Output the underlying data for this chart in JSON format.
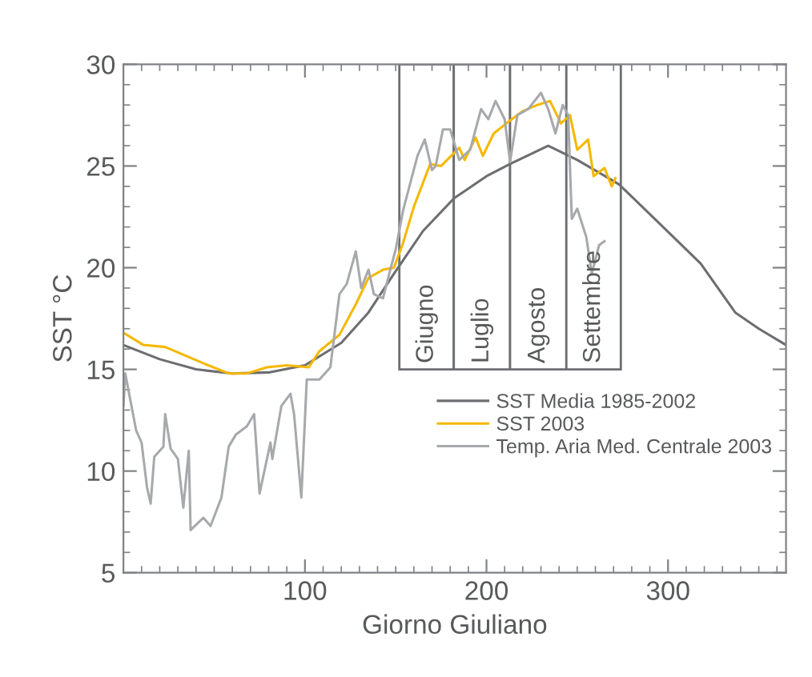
{
  "chart_data": {
    "type": "line",
    "xlabel": "Giorno Giuliano",
    "ylabel": "SST °C",
    "xlim": [
      0,
      365
    ],
    "xticks": [
      100,
      200,
      300
    ],
    "ylim": [
      5,
      30
    ],
    "yticks": [
      5,
      10,
      15,
      20,
      25,
      30
    ],
    "grid": false,
    "legend": "center right",
    "marker": "none",
    "line_style": "solid",
    "series": [
      {
        "name": "SST Media 1985-2002",
        "color": "#6d6e71",
        "x": [
          0,
          20,
          40,
          60,
          80,
          100,
          120,
          135,
          149,
          165,
          182,
          200,
          213,
          234,
          250,
          273,
          295,
          318,
          337,
          350,
          365
        ],
        "values": [
          16.2,
          15.5,
          15.0,
          14.8,
          14.85,
          15.2,
          16.3,
          17.8,
          19.7,
          21.8,
          23.4,
          24.5,
          25.1,
          26.0,
          25.3,
          24.1,
          22.2,
          20.2,
          17.8,
          17.0,
          16.2
        ]
      },
      {
        "name": "SST 2003",
        "color": "#f5b800",
        "x": [
          0,
          11,
          23,
          44,
          58,
          68,
          79,
          90,
          102,
          108,
          119,
          128,
          135,
          143,
          149,
          154,
          160,
          169,
          175,
          185,
          188,
          194,
          198,
          204,
          211,
          220,
          228,
          235,
          241,
          246,
          250,
          256,
          259,
          265,
          269,
          271
        ],
        "values": [
          16.8,
          16.2,
          16.1,
          15.3,
          14.8,
          14.8,
          15.1,
          15.2,
          15.1,
          15.9,
          16.7,
          18.2,
          19.5,
          19.9,
          20.0,
          21.2,
          23.0,
          25.1,
          25.0,
          25.9,
          25.3,
          26.4,
          25.5,
          26.6,
          27.1,
          27.7,
          28.0,
          28.2,
          27.1,
          27.5,
          25.8,
          26.3,
          24.5,
          24.9,
          24.0,
          24.4
        ]
      },
      {
        "name": "Temp. Aria Med. Centrale 2003",
        "color": "#a7a9ac",
        "x": [
          0,
          1,
          7,
          10,
          13,
          15,
          17,
          22,
          23,
          26,
          30,
          33,
          36,
          37,
          44,
          48,
          54,
          58,
          62,
          68,
          72,
          75,
          81,
          82,
          87,
          92,
          94,
          98,
          101,
          108,
          114,
          119,
          123,
          128,
          131,
          135,
          138,
          143,
          147,
          150,
          154,
          162,
          166,
          170,
          172,
          176,
          180,
          185,
          191,
          197,
          201,
          205,
          210,
          213,
          217,
          223,
          230,
          234,
          238,
          242,
          245,
          247,
          250,
          255,
          258,
          262,
          265
        ],
        "values": [
          13.2,
          14.8,
          12.0,
          11.4,
          9.2,
          8.4,
          10.7,
          11.2,
          12.8,
          11.1,
          10.6,
          8.2,
          11.0,
          7.1,
          7.7,
          7.3,
          8.7,
          11.2,
          11.8,
          12.2,
          12.8,
          8.9,
          11.4,
          10.6,
          13.2,
          13.8,
          12.8,
          8.7,
          14.5,
          14.5,
          15.1,
          18.7,
          19.2,
          20.8,
          19.0,
          19.9,
          18.7,
          18.5,
          19.9,
          20.9,
          22.8,
          25.5,
          26.3,
          24.8,
          25.0,
          26.8,
          26.8,
          25.3,
          25.8,
          27.8,
          27.3,
          28.2,
          27.3,
          25.2,
          27.5,
          27.8,
          28.6,
          27.8,
          26.6,
          28.0,
          27.5,
          22.4,
          22.9,
          21.5,
          19.7,
          21.1,
          21.3
        ]
      }
    ],
    "bands": [
      {
        "axis": "x",
        "from": 152,
        "to": 182,
        "label": "Giugno"
      },
      {
        "axis": "x",
        "from": 182,
        "to": 213,
        "label": "Luglio"
      },
      {
        "axis": "x",
        "from": 213,
        "to": 244,
        "label": "Agosto"
      },
      {
        "axis": "x",
        "from": 244,
        "to": 274,
        "label": "Settembre"
      }
    ]
  }
}
